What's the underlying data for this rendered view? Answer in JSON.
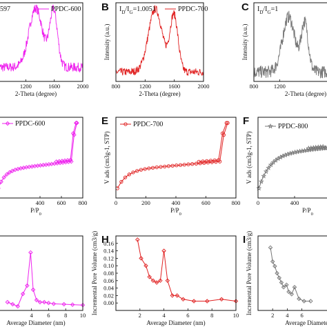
{
  "chart_data": [
    {
      "type": "line",
      "panel": "A",
      "ylabel": "",
      "xlabel": "2-Theta (degree)",
      "xlim": [
        800,
        2000
      ],
      "ylim": [
        0,
        1
      ],
      "xticks": [
        "1200",
        "1600",
        "2000"
      ],
      "annotation": "597",
      "series": [
        {
          "name": "PPDC-600",
          "color": "#ee22ee",
          "marker": "none",
          "noise": 0.06,
          "peak1": [
            1340,
            0.75
          ],
          "peak2": [
            1590,
            0.72
          ],
          "base": 0.18
        }
      ]
    },
    {
      "type": "line",
      "panel": "B",
      "ylabel": "Intensity (a.u.)",
      "xlabel": "2-Theta (degree)",
      "xlim": [
        800,
        2000
      ],
      "ylim": [
        0,
        1
      ],
      "xticks": [
        "800",
        "1200",
        "1600",
        "2000"
      ],
      "annotation": "I₀/I₁=1.0051",
      "annotation_main": "I",
      "annotation_sub1": "D",
      "annotation_mid": "/I",
      "annotation_sub2": "G",
      "annotation_val": "=1.0051",
      "series": [
        {
          "name": "PPDC-700",
          "color": "#e02020",
          "marker": "none",
          "noise": 0.05,
          "peak1": [
            1340,
            0.8
          ],
          "peak2": [
            1595,
            0.72
          ],
          "base": 0.12
        }
      ]
    },
    {
      "type": "line",
      "panel": "C",
      "ylabel": "Intensity (a.u.)",
      "xlabel": "2-Theta (degree)",
      "xlim": [
        800,
        2000
      ],
      "ylim": [
        0,
        1
      ],
      "xticks": [
        "800",
        "1200"
      ],
      "annotation_main": "I",
      "annotation_sub1": "D",
      "annotation_mid": "/I",
      "annotation_sub2": "G",
      "annotation_val": "=1",
      "series": [
        {
          "name": "",
          "color": "#777777",
          "marker": "none",
          "noise": 0.08,
          "peak1": [
            1340,
            0.7
          ],
          "peak2": [
            1590,
            0.62
          ],
          "base": 0.12
        }
      ]
    },
    {
      "type": "line",
      "panel": "D",
      "xlabel": "P/P",
      "xlabel_sub": "0",
      "xlim": [
        0,
        800
      ],
      "ylim": [
        0,
        1
      ],
      "xticks": [
        "400",
        "600",
        "800"
      ],
      "series": [
        {
          "name": "PPDC-600",
          "color": "#ee22ee",
          "marker": "diamond"
        }
      ]
    },
    {
      "type": "line",
      "panel": "E",
      "ylabel": "V ads (cm3g-1, STP)",
      "xlabel": "P/P",
      "xlabel_sub": "0",
      "xlim": [
        0,
        800
      ],
      "ylim": [
        0,
        1
      ],
      "xticks": [
        "0",
        "200",
        "400",
        "600",
        "800"
      ],
      "series": [
        {
          "name": "PPDC-700",
          "color": "#e02020",
          "marker": "circle"
        }
      ]
    },
    {
      "type": "line",
      "panel": "F",
      "ylabel": "V ads (cm3g-1, STP)",
      "xlabel": "P/P",
      "xlabel_sub": "0",
      "xlim": [
        0,
        800
      ],
      "ylim": [
        0,
        1
      ],
      "xticks": [
        "0",
        "400"
      ],
      "series": [
        {
          "name": "PPDC-800",
          "color": "#777777",
          "marker": "star"
        }
      ]
    },
    {
      "type": "line",
      "panel": "G",
      "xlabel": "Average Diameter (nm)",
      "xlim": [
        0,
        10
      ],
      "ylim": [
        0,
        0.18
      ],
      "xticks": [
        "4",
        "6",
        "8",
        "10"
      ],
      "series": [
        {
          "name": "",
          "color": "#ee22ee",
          "marker": "diamond",
          "x": [
            1.2,
            1.8,
            2.4,
            3.0,
            3.5,
            3.9,
            4.2,
            4.6,
            5.0,
            5.5,
            6.0,
            6.6,
            7.8,
            8.8,
            10
          ],
          "y": [
            0.02,
            0.015,
            0.01,
            0.04,
            0.06,
            0.14,
            0.05,
            0.025,
            0.02,
            0.02,
            0.018,
            0.016,
            0.015,
            0.014,
            0.013
          ]
        }
      ]
    },
    {
      "type": "line",
      "panel": "H",
      "ylabel": "Incremental Pore Volume (cm3/g)",
      "xlabel": "Average Diameter (nm)",
      "xlim": [
        0,
        10
      ],
      "ylim": [
        -0.02,
        0.18
      ],
      "yticks": [
        "0.00",
        "0.02",
        "0.04",
        "0.06",
        "0.08",
        "0.10",
        "0.12",
        "0.14",
        "0.16"
      ],
      "xticks": [
        "2",
        "4",
        "6",
        "8",
        "10"
      ],
      "series": [
        {
          "name": "",
          "color": "#e02020",
          "marker": "diamond",
          "x": [
            1.8,
            2.1,
            2.5,
            2.8,
            3.1,
            3.4,
            3.7,
            4.0,
            4.3,
            4.7,
            5.1,
            5.6,
            6.5,
            7.6,
            8.8,
            10
          ],
          "y": [
            0.17,
            0.12,
            0.1,
            0.07,
            0.06,
            0.055,
            0.06,
            0.14,
            0.06,
            0.02,
            0.02,
            0.01,
            0.005,
            0.005,
            0.01,
            0.005
          ]
        }
      ]
    },
    {
      "type": "line",
      "panel": "I",
      "ylabel": "Incremental Pore Volume (cm3/g)",
      "xlabel": "Average Diameter",
      "xlim": [
        0,
        10
      ],
      "ylim": [
        -0.02,
        0.3
      ],
      "xticks": [
        "2",
        "4",
        "6"
      ],
      "series": [
        {
          "name": "",
          "color": "#777777",
          "marker": "diamond",
          "x": [
            1.7,
            2.0,
            2.3,
            2.6,
            2.9,
            3.2,
            3.5,
            3.9,
            4.2,
            4.6,
            5.0,
            5.6,
            6.3,
            7.2
          ],
          "y": [
            0.25,
            0.19,
            0.17,
            0.14,
            0.12,
            0.1,
            0.08,
            0.09,
            0.06,
            0.05,
            0.08,
            0.03,
            0.02,
            0.02
          ]
        }
      ]
    }
  ],
  "panel_letters": [
    "B",
    "C",
    "E",
    "F",
    "H",
    "I"
  ]
}
